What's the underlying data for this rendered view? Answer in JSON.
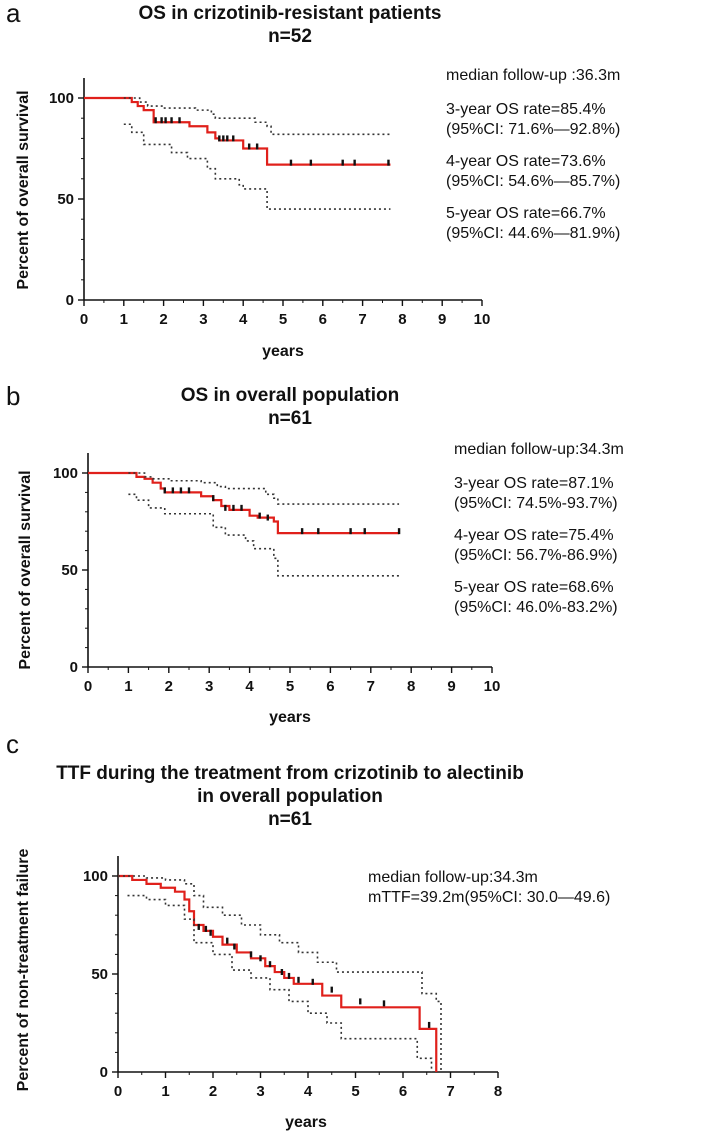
{
  "figure": {
    "panels": [
      {
        "label": "a",
        "title": [
          "OS in crizotinib-resistant patients",
          "n=52"
        ],
        "annotations": [
          "median follow-up :36.3m",
          "3-year OS rate=85.4%",
          "(95%CI: 71.6%—92.8%)",
          "4-year OS rate=73.6%",
          "(95%CI: 54.6%—85.7%)",
          "5-year OS rate=66.7%",
          "(95%CI: 44.6%—81.9%)"
        ]
      },
      {
        "label": "b",
        "title": [
          "OS in overall population",
          "n=61"
        ],
        "annotations": [
          "median follow-up:34.3m",
          "3-year OS rate=87.1%",
          "(95%CI: 74.5%-93.7%)",
          "4-year OS rate=75.4%",
          "(95%CI: 56.7%-86.9%)",
          "5-year OS rate=68.6%",
          "(95%CI: 46.0%-83.2%)"
        ]
      },
      {
        "label": "c",
        "title": [
          "TTF during the treatment from crizotinib to alectinib",
          "in overall population",
          "n=61"
        ],
        "annotations": [
          "median follow-up:34.3m",
          "mTTF=39.2m(95%CI: 30.0—49.6)"
        ]
      }
    ]
  },
  "chart_data": [
    {
      "type": "line",
      "title": "OS in crizotinib-resistant patients n=52",
      "xlabel": "years",
      "ylabel": "Percent of overall survival",
      "xlim": [
        0,
        10
      ],
      "ylim": [
        0,
        100
      ],
      "xticks": [
        0,
        1,
        2,
        3,
        4,
        5,
        6,
        7,
        8,
        9,
        10
      ],
      "yticks": [
        0,
        50,
        100
      ],
      "series": [
        {
          "name": "OS",
          "style": "survival",
          "color": "#e0201b",
          "points": [
            [
              0,
              100
            ],
            [
              1,
              100
            ],
            [
              1.2,
              98
            ],
            [
              1.35,
              96
            ],
            [
              1.5,
              94
            ],
            [
              1.75,
              88
            ],
            [
              2.5,
              88
            ],
            [
              2.65,
              86
            ],
            [
              3.1,
              83
            ],
            [
              3.3,
              80
            ],
            [
              3.4,
              79
            ],
            [
              3.9,
              79
            ],
            [
              4,
              75
            ],
            [
              4.6,
              74
            ],
            [
              4.6,
              67
            ],
            [
              7.7,
              67
            ]
          ]
        },
        {
          "name": "95% CI upper",
          "style": "ci",
          "color": "#333333",
          "points": [
            [
              1,
              100
            ],
            [
              1.2,
              100
            ],
            [
              1.4,
              98
            ],
            [
              1.6,
              96
            ],
            [
              2,
              95
            ],
            [
              2.6,
              95
            ],
            [
              2.8,
              94
            ],
            [
              3.2,
              92
            ],
            [
              3.3,
              90
            ],
            [
              4,
              90
            ],
            [
              4.3,
              88
            ],
            [
              4.6,
              86
            ],
            [
              4.7,
              82
            ],
            [
              7.7,
              82
            ]
          ]
        },
        {
          "name": "95% CI lower",
          "style": "ci",
          "color": "#333333",
          "points": [
            [
              1,
              87
            ],
            [
              1.2,
              83
            ],
            [
              1.5,
              77
            ],
            [
              2.2,
              73
            ],
            [
              2.6,
              70
            ],
            [
              3.1,
              65
            ],
            [
              3.3,
              60
            ],
            [
              3.9,
              57
            ],
            [
              4,
              55
            ],
            [
              4.6,
              53
            ],
            [
              4.6,
              45
            ],
            [
              7.7,
              45
            ]
          ]
        }
      ],
      "censor_marks": [
        [
          1.8,
          88
        ],
        [
          1.95,
          88
        ],
        [
          2.05,
          88
        ],
        [
          2.2,
          88
        ],
        [
          2.4,
          88
        ],
        [
          3.4,
          79
        ],
        [
          3.5,
          79
        ],
        [
          3.6,
          79
        ],
        [
          3.75,
          79
        ],
        [
          4.15,
          75
        ],
        [
          4.35,
          75
        ],
        [
          5.2,
          67
        ],
        [
          5.7,
          67
        ],
        [
          6.5,
          67
        ],
        [
          6.8,
          67
        ],
        [
          7.65,
          67
        ]
      ]
    },
    {
      "type": "line",
      "title": "OS in overall population n=61",
      "xlabel": "years",
      "ylabel": "Percent of overall survival",
      "xlim": [
        0,
        10
      ],
      "ylim": [
        0,
        100
      ],
      "xticks": [
        0,
        1,
        2,
        3,
        4,
        5,
        6,
        7,
        8,
        9,
        10
      ],
      "yticks": [
        0,
        50,
        100
      ],
      "series": [
        {
          "name": "OS",
          "style": "survival",
          "color": "#e0201b",
          "points": [
            [
              0,
              100
            ],
            [
              1,
              100
            ],
            [
              1.2,
              98
            ],
            [
              1.4,
              97
            ],
            [
              1.6,
              95
            ],
            [
              1.8,
              92
            ],
            [
              1.9,
              90
            ],
            [
              2.7,
              90
            ],
            [
              2.8,
              88
            ],
            [
              3.1,
              86
            ],
            [
              3.3,
              83
            ],
            [
              3.5,
              81
            ],
            [
              3.9,
              81
            ],
            [
              4,
              78
            ],
            [
              4.2,
              77
            ],
            [
              4.6,
              75
            ],
            [
              4.7,
              69
            ],
            [
              7.7,
              69
            ]
          ]
        },
        {
          "name": "95% CI upper",
          "style": "ci",
          "color": "#333333",
          "points": [
            [
              1,
              100
            ],
            [
              1.2,
              100
            ],
            [
              1.4,
              98
            ],
            [
              1.6,
              97
            ],
            [
              2,
              96
            ],
            [
              2.6,
              96
            ],
            [
              2.8,
              95
            ],
            [
              3.2,
              93
            ],
            [
              3.4,
              92
            ],
            [
              4,
              92
            ],
            [
              4.4,
              89
            ],
            [
              4.6,
              87
            ],
            [
              4.7,
              84
            ],
            [
              7.7,
              84
            ]
          ]
        },
        {
          "name": "95% CI lower",
          "style": "ci",
          "color": "#333333",
          "points": [
            [
              1,
              89
            ],
            [
              1.2,
              86
            ],
            [
              1.5,
              82
            ],
            [
              1.9,
              79
            ],
            [
              2.8,
              79
            ],
            [
              3.1,
              72
            ],
            [
              3.4,
              68
            ],
            [
              3.9,
              65
            ],
            [
              4.1,
              61
            ],
            [
              4.6,
              56
            ],
            [
              4.7,
              47
            ],
            [
              7.7,
              47
            ]
          ]
        }
      ],
      "censor_marks": [
        [
          1.9,
          90
        ],
        [
          2.1,
          90
        ],
        [
          2.3,
          90
        ],
        [
          2.5,
          90
        ],
        [
          3.1,
          86
        ],
        [
          3.4,
          81
        ],
        [
          3.6,
          81
        ],
        [
          3.8,
          81
        ],
        [
          4.25,
          77
        ],
        [
          4.45,
          76
        ],
        [
          5.3,
          69
        ],
        [
          5.7,
          69
        ],
        [
          6.5,
          69
        ],
        [
          6.85,
          69
        ],
        [
          7.7,
          69
        ]
      ]
    },
    {
      "type": "line",
      "title": "TTF during the treatment from crizotinib to alectinib in overall population n=61",
      "xlabel": "years",
      "ylabel": "Percent of non-treatment failure",
      "xlim": [
        0,
        8
      ],
      "ylim": [
        0,
        100
      ],
      "xticks": [
        0,
        1,
        2,
        3,
        4,
        5,
        6,
        7,
        8
      ],
      "yticks": [
        0,
        50,
        100
      ],
      "series": [
        {
          "name": "TTF",
          "style": "survival",
          "color": "#e0201b",
          "points": [
            [
              0,
              100
            ],
            [
              0.2,
              100
            ],
            [
              0.3,
              98
            ],
            [
              0.6,
              96
            ],
            [
              0.9,
              94
            ],
            [
              1.2,
              92
            ],
            [
              1.4,
              88
            ],
            [
              1.5,
              82
            ],
            [
              1.6,
              75
            ],
            [
              1.8,
              72
            ],
            [
              2,
              69
            ],
            [
              2.2,
              65
            ],
            [
              2.5,
              61
            ],
            [
              2.8,
              58
            ],
            [
              3.1,
              54
            ],
            [
              3.3,
              51
            ],
            [
              3.5,
              48
            ],
            [
              3.7,
              45
            ],
            [
              4.2,
              45
            ],
            [
              4.3,
              39
            ],
            [
              4.7,
              39
            ],
            [
              4.7,
              33
            ],
            [
              6.3,
              33
            ],
            [
              6.35,
              22
            ],
            [
              6.7,
              22
            ],
            [
              6.7,
              0
            ]
          ]
        },
        {
          "name": "95% CI upper",
          "style": "ci",
          "color": "#333333",
          "points": [
            [
              0,
              100
            ],
            [
              0.2,
              100
            ],
            [
              0.6,
              99
            ],
            [
              1,
              98
            ],
            [
              1.4,
              96
            ],
            [
              1.6,
              90
            ],
            [
              1.8,
              84
            ],
            [
              2.2,
              80
            ],
            [
              2.6,
              75
            ],
            [
              3,
              70
            ],
            [
              3.4,
              66
            ],
            [
              3.8,
              61
            ],
            [
              4.2,
              56
            ],
            [
              4.6,
              51
            ],
            [
              6.1,
              51
            ],
            [
              6.4,
              40
            ],
            [
              6.7,
              36
            ],
            [
              6.8,
              30
            ],
            [
              6.8,
              0
            ]
          ]
        },
        {
          "name": "95% CI lower",
          "style": "ci",
          "color": "#333333",
          "points": [
            [
              0.2,
              90
            ],
            [
              0.6,
              88
            ],
            [
              1,
              85
            ],
            [
              1.4,
              78
            ],
            [
              1.6,
              66
            ],
            [
              2,
              60
            ],
            [
              2.4,
              52
            ],
            [
              2.8,
              48
            ],
            [
              3.2,
              42
            ],
            [
              3.6,
              36
            ],
            [
              4,
              30
            ],
            [
              4.4,
              25
            ],
            [
              4.7,
              17
            ],
            [
              6.1,
              17
            ],
            [
              6.3,
              7
            ],
            [
              6.6,
              4
            ],
            [
              6.6,
              0
            ]
          ]
        }
      ],
      "censor_marks": [
        [
          1.7,
          73
        ],
        [
          1.85,
          72
        ],
        [
          1.95,
          70
        ],
        [
          2.3,
          66
        ],
        [
          2.45,
          63
        ],
        [
          2.8,
          59
        ],
        [
          3,
          57
        ],
        [
          3.2,
          54
        ],
        [
          3.45,
          50
        ],
        [
          3.6,
          48
        ],
        [
          3.8,
          46
        ],
        [
          4.1,
          45
        ],
        [
          4.5,
          41
        ],
        [
          5.1,
          35
        ],
        [
          5.6,
          34
        ],
        [
          6.55,
          23
        ]
      ]
    }
  ]
}
